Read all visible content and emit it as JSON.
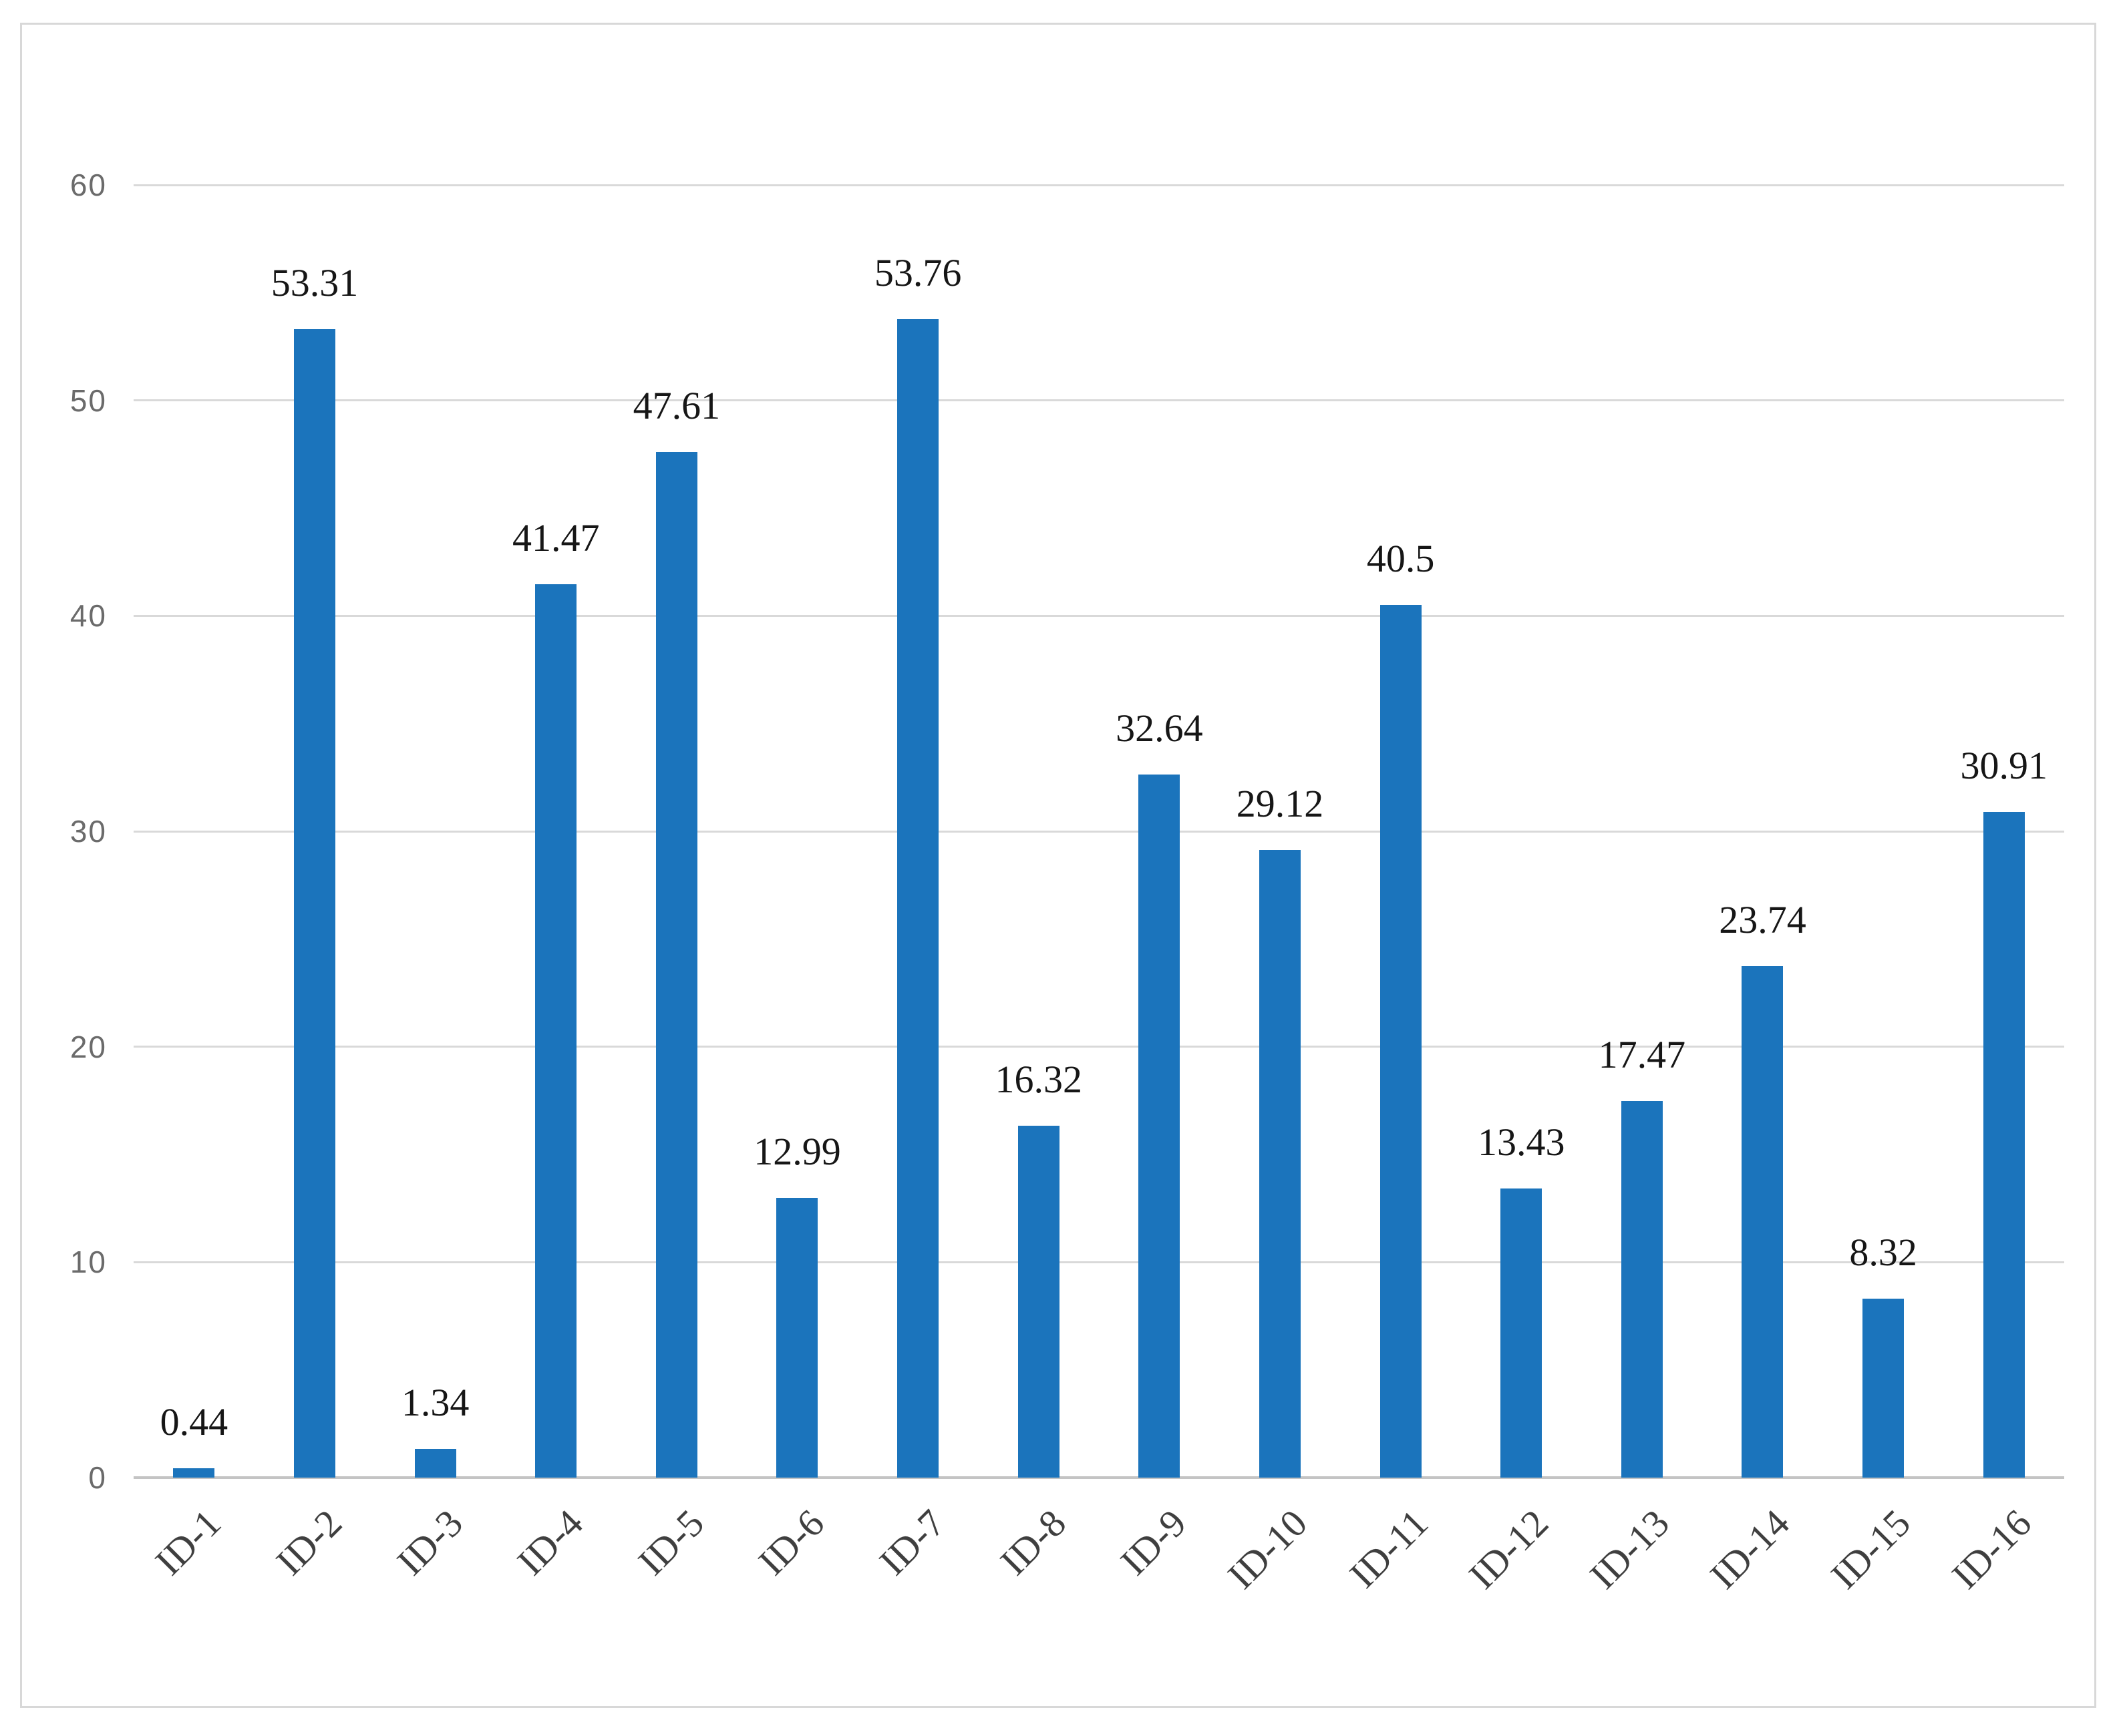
{
  "chart_data": {
    "type": "bar",
    "title": "",
    "xlabel": "",
    "ylabel": "",
    "categories": [
      "ID-1",
      "ID-2",
      "ID-3",
      "ID-4",
      "ID-5",
      "ID-6",
      "ID-7",
      "ID-8",
      "ID-9",
      "ID-10",
      "ID-11",
      "ID-12",
      "ID-13",
      "ID-14",
      "ID-15",
      "ID-16"
    ],
    "values": [
      0.44,
      53.31,
      1.34,
      41.47,
      47.61,
      12.99,
      53.76,
      16.32,
      32.64,
      29.12,
      40.5,
      13.43,
      17.47,
      23.74,
      8.32,
      30.91
    ],
    "value_labels": [
      "0.44",
      "53.31",
      "1.34",
      "41.47",
      "47.61",
      "12.99",
      "53.76",
      "16.32",
      "32.64",
      "29.12",
      "40.5",
      "13.43",
      "17.47",
      "23.74",
      "8.32",
      "30.91"
    ],
    "ylim": [
      0,
      60
    ],
    "y_ticks": [
      "0",
      "10",
      "20",
      "30",
      "40",
      "50",
      "60"
    ],
    "grid": "horizontal",
    "legend": "none",
    "colors": {
      "bar": "#1b74bc",
      "gridline": "#d9d9d9",
      "axis_line": "#c4c4c4",
      "y_tick_label": "#6b6b6b",
      "x_tick_label": "#3f3f3f",
      "value_label": "#161616",
      "frame_border": "#d8d8d8",
      "background": "#ffffff"
    }
  }
}
